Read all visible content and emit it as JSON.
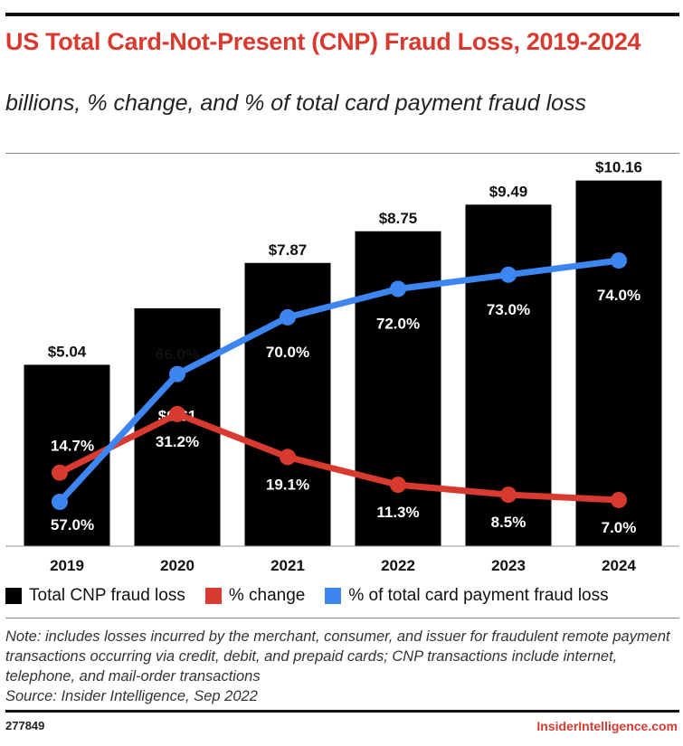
{
  "chart_data": {
    "type": "bar",
    "title": "US Total Card-Not-Present (CNP) Fraud Loss, 2019-2024",
    "subtitle": "billions, % change, and % of total card payment fraud loss",
    "categories": [
      "2019",
      "2020",
      "2021",
      "2022",
      "2023",
      "2024"
    ],
    "series": [
      {
        "name": "Total CNP fraud loss",
        "type": "bar",
        "color": "#000000",
        "values": [
          5.04,
          6.61,
          7.87,
          8.75,
          9.49,
          10.16
        ],
        "labels": [
          "$5.04",
          "$6.61",
          "$7.87",
          "$8.75",
          "$9.49",
          "$10.16"
        ]
      },
      {
        "name": "% change",
        "type": "line",
        "color": "#d93a2f",
        "values": [
          14.7,
          31.2,
          19.1,
          11.3,
          8.5,
          7.0
        ],
        "labels": [
          "14.7%",
          "31.2%",
          "19.1%",
          "11.3%",
          "8.5%",
          "7.0%"
        ]
      },
      {
        "name": "% of total card payment fraud loss",
        "type": "line",
        "color": "#3d85f0",
        "values": [
          57.0,
          66.0,
          70.0,
          72.0,
          73.0,
          74.0
        ],
        "labels": [
          "57.0%",
          "66.0%",
          "70.0%",
          "72.0%",
          "73.0%",
          "74.0%"
        ]
      }
    ],
    "grid": false,
    "legend_position": "bottom"
  },
  "note": "Note: includes losses incurred by the merchant, consumer, and issuer for fraudulent remote payment transactions occurring via credit, debit, and prepaid cards; CNP transactions include internet, telephone, and mail-order transactions",
  "source": "Source: Insider Intelligence, Sep 2022",
  "chart_id": "277849",
  "brand": "InsiderIntelligence.com"
}
